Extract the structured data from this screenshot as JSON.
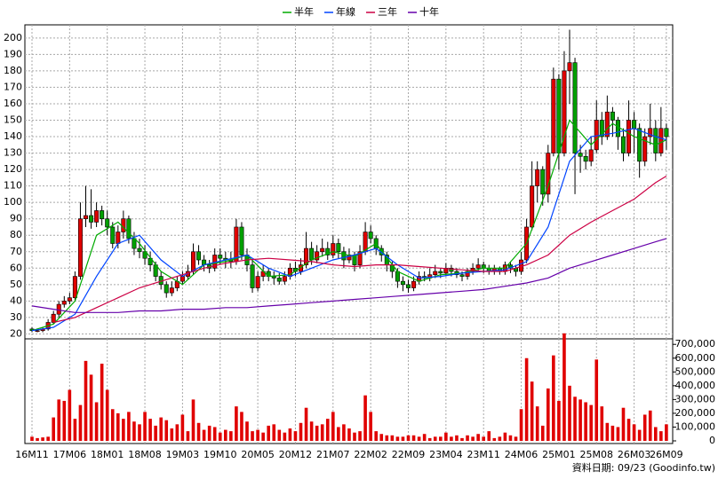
{
  "chart_data": {
    "type": "candlestick",
    "legend": [
      {
        "name": "半年",
        "color": "#00aa00"
      },
      {
        "name": "年線",
        "color": "#0044ff"
      },
      {
        "name": "三年",
        "color": "#cc0044"
      },
      {
        "name": "十年",
        "color": "#6600aa"
      }
    ],
    "footer": "資料日期: 09/23  (Goodinfo.tw)",
    "up_color": "#e00000",
    "down_color": "#00a000",
    "volume_color": "#e00000",
    "grid": true,
    "categories": [
      "16M11",
      null,
      null,
      null,
      null,
      null,
      null,
      "17M06",
      null,
      null,
      null,
      null,
      null,
      null,
      "18M01",
      null,
      null,
      null,
      null,
      null,
      null,
      "18M08",
      null,
      null,
      null,
      null,
      null,
      null,
      "19M03",
      null,
      null,
      null,
      null,
      null,
      null,
      "19M10",
      null,
      null,
      null,
      null,
      null,
      null,
      "20M05",
      null,
      null,
      null,
      null,
      null,
      null,
      "20M12",
      null,
      null,
      null,
      null,
      null,
      null,
      "21M07",
      null,
      null,
      null,
      null,
      null,
      null,
      "22M02",
      null,
      null,
      null,
      null,
      null,
      null,
      "22M09",
      null,
      null,
      null,
      null,
      null,
      null,
      "23M04",
      null,
      null,
      null,
      null,
      null,
      null,
      "23M11",
      null,
      null,
      null,
      null,
      null,
      null,
      "24M06",
      null,
      null,
      null,
      null,
      null,
      null,
      "25M01",
      null,
      null,
      null,
      null,
      null,
      null,
      "25M08",
      null,
      null,
      null,
      null,
      null,
      null,
      "26M03",
      null,
      null,
      null,
      null,
      null,
      "26M09"
    ],
    "ohlc": [
      [
        23,
        24,
        21,
        22
      ],
      [
        22,
        23,
        21,
        22
      ],
      [
        22,
        24,
        21,
        23
      ],
      [
        23,
        29,
        22,
        27
      ],
      [
        27,
        34,
        26,
        32
      ],
      [
        32,
        40,
        30,
        38
      ],
      [
        38,
        43,
        36,
        40
      ],
      [
        40,
        45,
        38,
        42
      ],
      [
        42,
        58,
        40,
        55
      ],
      [
        55,
        100,
        53,
        90
      ],
      [
        90,
        110,
        85,
        92
      ],
      [
        92,
        108,
        84,
        88
      ],
      [
        88,
        100,
        85,
        95
      ],
      [
        95,
        98,
        86,
        90
      ],
      [
        90,
        95,
        80,
        85
      ],
      [
        85,
        88,
        72,
        75
      ],
      [
        75,
        86,
        72,
        82
      ],
      [
        82,
        95,
        78,
        90
      ],
      [
        90,
        92,
        75,
        78
      ],
      [
        78,
        82,
        68,
        72
      ],
      [
        72,
        78,
        66,
        70
      ],
      [
        70,
        74,
        62,
        66
      ],
      [
        66,
        70,
        58,
        62
      ],
      [
        62,
        64,
        52,
        55
      ],
      [
        55,
        58,
        47,
        50
      ],
      [
        50,
        52,
        42,
        45
      ],
      [
        45,
        52,
        43,
        48
      ],
      [
        48,
        55,
        46,
        52
      ],
      [
        52,
        58,
        50,
        55
      ],
      [
        55,
        62,
        53,
        58
      ],
      [
        58,
        75,
        56,
        70
      ],
      [
        70,
        74,
        62,
        65
      ],
      [
        65,
        68,
        58,
        62
      ],
      [
        62,
        65,
        57,
        60
      ],
      [
        60,
        72,
        58,
        68
      ],
      [
        68,
        72,
        62,
        66
      ],
      [
        66,
        70,
        60,
        65
      ],
      [
        65,
        70,
        60,
        64
      ],
      [
        64,
        90,
        62,
        85
      ],
      [
        85,
        88,
        65,
        68
      ],
      [
        68,
        72,
        58,
        62
      ],
      [
        62,
        65,
        45,
        48
      ],
      [
        48,
        58,
        46,
        55
      ],
      [
        55,
        62,
        52,
        58
      ],
      [
        58,
        60,
        52,
        55
      ],
      [
        55,
        58,
        50,
        54
      ],
      [
        54,
        57,
        50,
        52
      ],
      [
        52,
        58,
        50,
        55
      ],
      [
        55,
        63,
        53,
        60
      ],
      [
        60,
        64,
        55,
        58
      ],
      [
        58,
        66,
        56,
        62
      ],
      [
        62,
        82,
        60,
        72
      ],
      [
        72,
        76,
        62,
        65
      ],
      [
        65,
        74,
        63,
        70
      ],
      [
        70,
        78,
        67,
        72
      ],
      [
        72,
        76,
        65,
        68
      ],
      [
        68,
        80,
        66,
        75
      ],
      [
        75,
        78,
        66,
        70
      ],
      [
        70,
        73,
        60,
        65
      ],
      [
        65,
        72,
        63,
        68
      ],
      [
        68,
        70,
        58,
        62
      ],
      [
        62,
        74,
        60,
        70
      ],
      [
        70,
        88,
        68,
        82
      ],
      [
        82,
        86,
        75,
        78
      ],
      [
        78,
        80,
        68,
        72
      ],
      [
        72,
        74,
        64,
        68
      ],
      [
        68,
        70,
        58,
        62
      ],
      [
        62,
        64,
        54,
        58
      ],
      [
        58,
        60,
        48,
        52
      ],
      [
        52,
        55,
        46,
        50
      ],
      [
        50,
        53,
        45,
        48
      ],
      [
        48,
        55,
        46,
        52
      ],
      [
        52,
        58,
        50,
        55
      ],
      [
        55,
        58,
        52,
        54
      ],
      [
        54,
        60,
        52,
        56
      ],
      [
        56,
        62,
        54,
        58
      ],
      [
        58,
        60,
        54,
        57
      ],
      [
        57,
        63,
        55,
        60
      ],
      [
        60,
        62,
        55,
        58
      ],
      [
        58,
        60,
        54,
        56
      ],
      [
        56,
        58,
        52,
        55
      ],
      [
        55,
        60,
        53,
        58
      ],
      [
        58,
        63,
        56,
        60
      ],
      [
        60,
        66,
        58,
        62
      ],
      [
        62,
        64,
        57,
        60
      ],
      [
        60,
        62,
        56,
        58
      ],
      [
        58,
        62,
        56,
        60
      ],
      [
        60,
        61,
        56,
        58
      ],
      [
        58,
        64,
        56,
        62
      ],
      [
        62,
        64,
        57,
        60
      ],
      [
        60,
        62,
        55,
        58
      ],
      [
        58,
        70,
        56,
        65
      ],
      [
        65,
        90,
        63,
        85
      ],
      [
        85,
        125,
        83,
        110
      ],
      [
        110,
        125,
        100,
        120
      ],
      [
        120,
        122,
        98,
        105
      ],
      [
        105,
        135,
        100,
        130
      ],
      [
        130,
        182,
        128,
        175
      ],
      [
        175,
        178,
        120,
        130
      ],
      [
        130,
        192,
        128,
        180
      ],
      [
        180,
        205,
        160,
        185
      ],
      [
        185,
        188,
        105,
        130
      ],
      [
        130,
        135,
        118,
        128
      ],
      [
        128,
        132,
        120,
        125
      ],
      [
        125,
        140,
        122,
        132
      ],
      [
        132,
        162,
        130,
        150
      ],
      [
        150,
        155,
        135,
        140
      ],
      [
        140,
        165,
        138,
        155
      ],
      [
        155,
        158,
        140,
        150
      ],
      [
        150,
        152,
        132,
        140
      ],
      [
        140,
        145,
        125,
        130
      ],
      [
        130,
        162,
        128,
        150
      ],
      [
        150,
        155,
        130,
        145
      ],
      [
        145,
        148,
        115,
        125
      ],
      [
        125,
        145,
        122,
        140
      ],
      [
        140,
        160,
        135,
        145
      ],
      [
        145,
        150,
        125,
        130
      ],
      [
        130,
        158,
        128,
        145
      ],
      [
        145,
        148,
        132,
        140
      ]
    ],
    "series": [
      {
        "name": "半年",
        "color": "#00aa00",
        "x": [
          0,
          4,
          8,
          12,
          16,
          20,
          24,
          28,
          32,
          36,
          40,
          44,
          48,
          52,
          56,
          60,
          64,
          68,
          72,
          76,
          80,
          84,
          88,
          92,
          96,
          100,
          104,
          108,
          112,
          116,
          118
        ],
        "values": [
          22,
          26,
          40,
          80,
          88,
          75,
          58,
          50,
          62,
          64,
          68,
          55,
          56,
          65,
          70,
          67,
          75,
          58,
          52,
          56,
          57,
          60,
          60,
          75,
          110,
          150,
          135,
          148,
          140,
          135,
          138
        ]
      },
      {
        "name": "年線",
        "color": "#0044ff",
        "x": [
          0,
          4,
          8,
          12,
          16,
          20,
          24,
          28,
          32,
          36,
          40,
          44,
          48,
          52,
          56,
          60,
          64,
          68,
          72,
          76,
          80,
          84,
          88,
          92,
          96,
          100,
          104,
          108,
          112,
          116,
          118
        ],
        "values": [
          22,
          24,
          32,
          55,
          75,
          80,
          65,
          55,
          62,
          65,
          68,
          60,
          55,
          60,
          65,
          68,
          72,
          62,
          54,
          55,
          57,
          58,
          59,
          64,
          85,
          125,
          140,
          142,
          145,
          140,
          138
        ]
      },
      {
        "name": "三年",
        "color": "#cc0044",
        "x": [
          4,
          8,
          12,
          16,
          20,
          24,
          28,
          32,
          36,
          40,
          44,
          48,
          52,
          56,
          60,
          64,
          68,
          72,
          76,
          80,
          84,
          88,
          92,
          96,
          100,
          104,
          108,
          112,
          116,
          118
        ],
        "values": [
          27,
          30,
          36,
          42,
          48,
          52,
          56,
          60,
          63,
          65,
          66,
          65,
          64,
          62,
          61,
          62,
          62,
          61,
          60,
          59,
          58,
          58,
          62,
          68,
          80,
          88,
          95,
          102,
          112,
          116
        ]
      },
      {
        "name": "十年",
        "color": "#6600aa",
        "x": [
          0,
          4,
          8,
          12,
          16,
          20,
          24,
          28,
          32,
          36,
          40,
          44,
          48,
          52,
          56,
          60,
          64,
          68,
          72,
          76,
          80,
          84,
          88,
          92,
          96,
          100,
          104,
          108,
          112,
          116,
          118
        ],
        "values": [
          37,
          35,
          33,
          33,
          33,
          34,
          34,
          35,
          35,
          36,
          36,
          37,
          38,
          39,
          40,
          41,
          42,
          43,
          44,
          45,
          46,
          47,
          49,
          51,
          54,
          60,
          64,
          68,
          72,
          76,
          78
        ]
      }
    ],
    "volume": [
      30000,
      20000,
      25000,
      30000,
      170000,
      300000,
      290000,
      370000,
      160000,
      260000,
      580000,
      480000,
      280000,
      560000,
      370000,
      230000,
      200000,
      160000,
      210000,
      140000,
      120000,
      210000,
      160000,
      110000,
      170000,
      150000,
      90000,
      120000,
      190000,
      70000,
      300000,
      130000,
      80000,
      110000,
      100000,
      60000,
      80000,
      70000,
      250000,
      210000,
      140000,
      70000,
      80000,
      60000,
      110000,
      120000,
      80000,
      60000,
      90000,
      70000,
      130000,
      240000,
      140000,
      110000,
      120000,
      160000,
      210000,
      100000,
      120000,
      90000,
      60000,
      70000,
      330000,
      210000,
      70000,
      50000,
      40000,
      40000,
      30000,
      30000,
      40000,
      40000,
      30000,
      50000,
      20000,
      30000,
      30000,
      60000,
      30000,
      40000,
      20000,
      40000,
      30000,
      50000,
      30000,
      70000,
      20000,
      30000,
      60000,
      40000,
      30000,
      230000,
      600000,
      430000,
      250000,
      110000,
      380000,
      620000,
      290000,
      780000,
      400000,
      320000,
      300000,
      280000,
      260000,
      590000,
      250000,
      130000,
      110000,
      100000,
      240000,
      160000,
      120000,
      80000,
      190000,
      220000,
      100000,
      70000,
      120000
    ],
    "ylim": [
      17,
      208
    ],
    "yticks": [
      20,
      30,
      40,
      50,
      60,
      70,
      80,
      90,
      100,
      110,
      120,
      130,
      140,
      150,
      160,
      170,
      180,
      190,
      200
    ],
    "vlim": [
      0,
      740000
    ],
    "vticks": [
      {
        "value": 0,
        "label": "0"
      },
      {
        "value": 100000,
        "label": "100,000"
      },
      {
        "value": 200000,
        "label": "200,000"
      },
      {
        "value": 300000,
        "label": "300,000"
      },
      {
        "value": 400000,
        "label": "400,000"
      },
      {
        "value": 500000,
        "label": "500,000"
      },
      {
        "value": 600000,
        "label": "600,000"
      },
      {
        "value": 700000,
        "label": "700,000"
      }
    ]
  }
}
